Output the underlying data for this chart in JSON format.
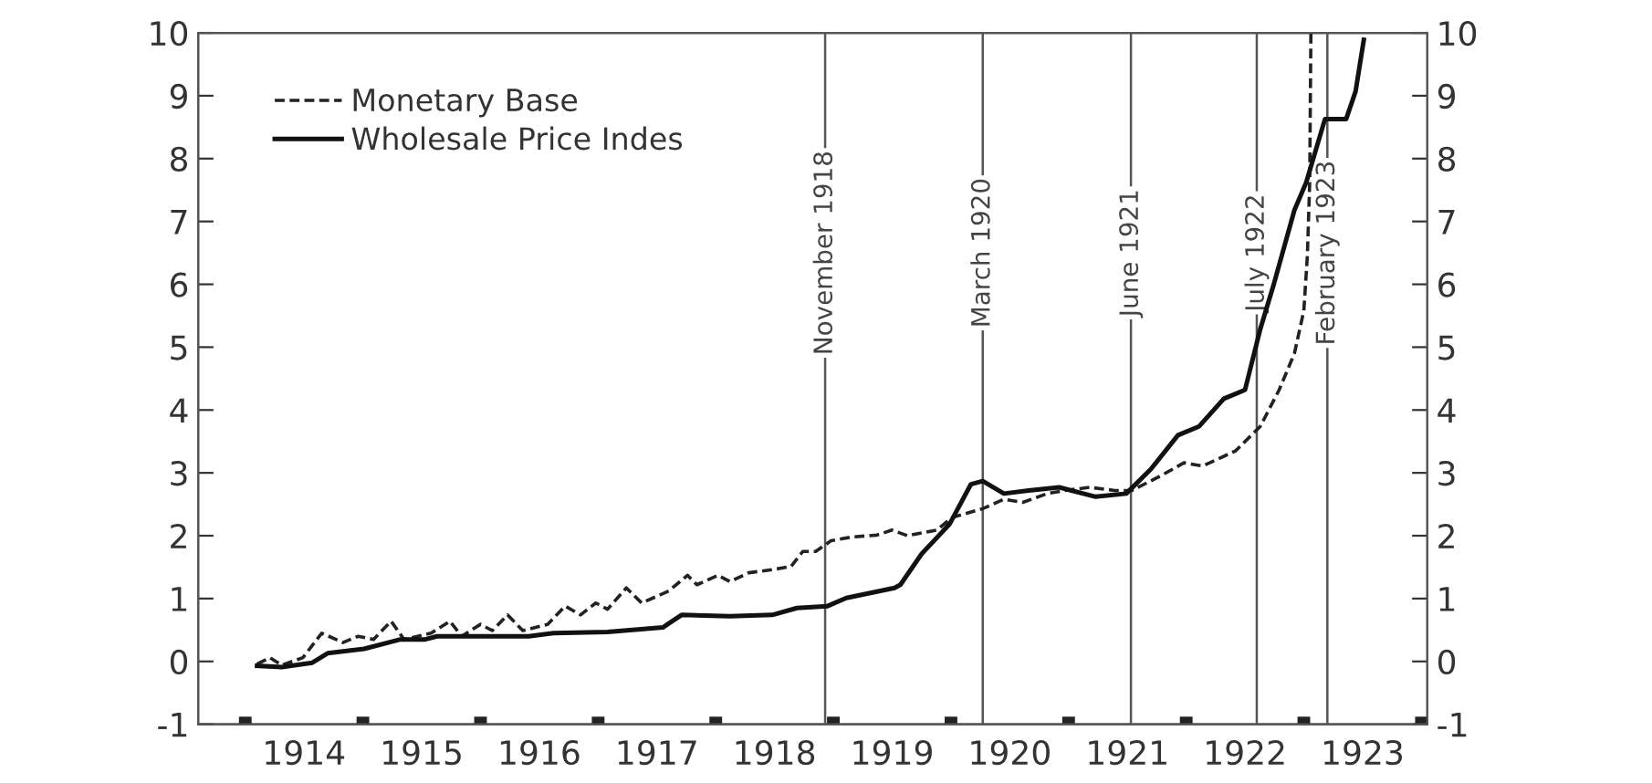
{
  "chart_data": {
    "type": "line",
    "series": [
      {
        "name": "Monetary Base",
        "color": "#222222",
        "line_style": "dashed",
        "x": [
          1914.1,
          1914.21,
          1914.31,
          1914.49,
          1914.65,
          1914.83,
          1914.96,
          1915.09,
          1915.24,
          1915.35,
          1915.58,
          1915.74,
          1915.84,
          1916.0,
          1916.1,
          1916.23,
          1916.36,
          1916.57,
          1916.72,
          1916.85,
          1916.98,
          1917.08,
          1917.24,
          1917.37,
          1917.6,
          1917.76,
          1917.84,
          1918.02,
          1918.12,
          1918.28,
          1918.48,
          1918.64,
          1918.74,
          1918.85,
          1918.98,
          1919.16,
          1919.37,
          1919.5,
          1919.63,
          1919.88,
          1920.01,
          1920.27,
          1920.45,
          1920.61,
          1920.82,
          1920.97,
          1921.18,
          1921.39,
          1921.54,
          1921.8,
          1921.98,
          1922.14,
          1922.42,
          1922.63,
          1922.79,
          1922.92,
          1923.0,
          1923.03,
          1923.05,
          1923.06
        ],
        "values": [
          -0.04,
          0.06,
          -0.06,
          0.06,
          0.45,
          0.3,
          0.4,
          0.35,
          0.64,
          0.35,
          0.45,
          0.64,
          0.4,
          0.59,
          0.49,
          0.74,
          0.49,
          0.59,
          0.88,
          0.74,
          0.93,
          0.83,
          1.17,
          0.93,
          1.12,
          1.37,
          1.22,
          1.37,
          1.27,
          1.41,
          1.46,
          1.51,
          1.75,
          1.75,
          1.92,
          1.98,
          2.01,
          2.09,
          2.0,
          2.09,
          2.29,
          2.43,
          2.58,
          2.53,
          2.67,
          2.72,
          2.77,
          2.72,
          2.72,
          2.97,
          3.16,
          3.11,
          3.35,
          3.74,
          4.32,
          4.9,
          5.58,
          6.45,
          7.62,
          10
        ]
      },
      {
        "name": "Wholesale Price Indes",
        "color": "#111111",
        "line_style": "solid",
        "x": [
          1914.1,
          1914.31,
          1914.57,
          1914.7,
          1915.01,
          1915.32,
          1915.53,
          1915.63,
          1916.41,
          1916.62,
          1917.08,
          1917.55,
          1917.63,
          1917.71,
          1918.12,
          1918.48,
          1918.69,
          1918.95,
          1919.11,
          1919.52,
          1919.57,
          1919.75,
          1919.99,
          1920.17,
          1920.27,
          1920.45,
          1920.66,
          1920.92,
          1921.23,
          1921.49,
          1921.7,
          1921.93,
          1922.11,
          1922.32,
          1922.5,
          1922.63,
          1922.74,
          1922.92,
          1923.02,
          1923.18,
          1923.36,
          1923.44,
          1923.51
        ],
        "values": [
          -0.07,
          -0.09,
          -0.02,
          0.13,
          0.2,
          0.35,
          0.35,
          0.4,
          0.4,
          0.45,
          0.47,
          0.54,
          0.64,
          0.74,
          0.72,
          0.74,
          0.85,
          0.88,
          1.01,
          1.17,
          1.22,
          1.71,
          2.19,
          2.82,
          2.87,
          2.67,
          2.72,
          2.77,
          2.62,
          2.67,
          3.06,
          3.6,
          3.74,
          4.18,
          4.32,
          5.29,
          5.97,
          7.18,
          7.62,
          8.63,
          8.63,
          9.07,
          9.89
        ]
      }
    ],
    "xlim": [
      1913.6,
      1924.05
    ],
    "xticks": [
      {
        "value": 1914,
        "label": null
      },
      {
        "value": 1914.5,
        "label": "1914"
      },
      {
        "value": 1915,
        "label": null
      },
      {
        "value": 1915.5,
        "label": "1915"
      },
      {
        "value": 1916,
        "label": null
      },
      {
        "value": 1916.5,
        "label": "1916"
      },
      {
        "value": 1917,
        "label": null
      },
      {
        "value": 1917.5,
        "label": "1917"
      },
      {
        "value": 1918,
        "label": null
      },
      {
        "value": 1918.5,
        "label": "1918"
      },
      {
        "value": 1919,
        "label": null
      },
      {
        "value": 1919.5,
        "label": "1919"
      },
      {
        "value": 1920,
        "label": null
      },
      {
        "value": 1920.5,
        "label": "1920"
      },
      {
        "value": 1921,
        "label": null
      },
      {
        "value": 1921.5,
        "label": "1921"
      },
      {
        "value": 1922,
        "label": null
      },
      {
        "value": 1922.5,
        "label": "1922"
      },
      {
        "value": 1923,
        "label": null
      },
      {
        "value": 1923.5,
        "label": "1923"
      },
      {
        "value": 1924,
        "label": null
      }
    ],
    "ylim": [
      -1,
      10
    ],
    "yticks": [
      -1,
      0,
      1,
      2,
      3,
      4,
      5,
      6,
      7,
      8,
      9,
      10
    ],
    "y2lim": [
      -1,
      10
    ],
    "y2ticks": [
      -1,
      0,
      1,
      2,
      3,
      4,
      5,
      6,
      7,
      8,
      9,
      10
    ],
    "ref_lines": [
      {
        "axis": "x",
        "value": 1918.93,
        "label": "November 1918",
        "color": "#555555"
      },
      {
        "axis": "x",
        "value": 1920.27,
        "label": "March 1920",
        "color": "#555555"
      },
      {
        "axis": "x",
        "value": 1921.53,
        "label": "June 1921",
        "color": "#555555"
      },
      {
        "axis": "x",
        "value": 1922.6,
        "label": "July 1922",
        "color": "#555555"
      },
      {
        "axis": "x",
        "value": 1923.2,
        "label": "February 1923",
        "color": "#555555"
      }
    ],
    "legend": "top left",
    "grid": false
  }
}
